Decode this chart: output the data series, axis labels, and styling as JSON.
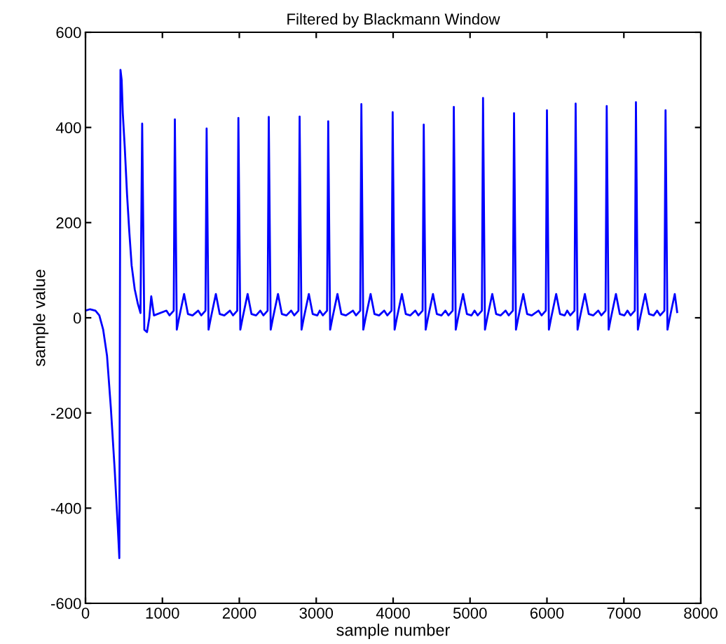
{
  "chart_data": {
    "type": "line",
    "title": "Filtered by Blackmann Window",
    "xlabel": "sample number",
    "ylabel": "sample value",
    "xlim": [
      0,
      8000
    ],
    "xticks": [
      0,
      1000,
      2000,
      3000,
      4000,
      5000,
      6000,
      7000,
      8000
    ],
    "ylim": [
      -600,
      600
    ],
    "yticks": [
      -600,
      -400,
      -200,
      0,
      200,
      400,
      600
    ],
    "grid": false,
    "legend": false,
    "marker": "none",
    "line_style": "solid",
    "series": [
      {
        "color": "#0000ff",
        "x": [
          0,
          60,
          130,
          180,
          230,
          280,
          330,
          380,
          420,
          440,
          455,
          470,
          485,
          510,
          540,
          570,
          600,
          640,
          680,
          715,
          737,
          765,
          800,
          830,
          855,
          890,
          1052,
          1092,
          1147,
          1162,
          1187,
          1217,
          1282,
          1332,
          1392,
          1465,
          1505,
          1560,
          1575,
          1600,
          1630,
          1695,
          1745,
          1805,
          1878,
          1918,
          1973,
          1988,
          2013,
          2043,
          2108,
          2158,
          2218,
          2273,
          2313,
          2368,
          2383,
          2408,
          2438,
          2503,
          2553,
          2613,
          2674,
          2714,
          2769,
          2784,
          2809,
          2839,
          2904,
          2954,
          3014,
          3046,
          3086,
          3141,
          3156,
          3181,
          3211,
          3276,
          3326,
          3386,
          3477,
          3517,
          3572,
          3587,
          3612,
          3642,
          3707,
          3757,
          3817,
          3884,
          3924,
          3979,
          3994,
          4019,
          4049,
          4114,
          4164,
          4224,
          4288,
          4328,
          4383,
          4398,
          4423,
          4453,
          4518,
          4568,
          4628,
          4679,
          4719,
          4774,
          4789,
          4814,
          4844,
          4909,
          4959,
          5019,
          5059,
          5099,
          5154,
          5169,
          5194,
          5224,
          5289,
          5339,
          5399,
          5462,
          5502,
          5557,
          5572,
          5597,
          5627,
          5692,
          5742,
          5802,
          5890,
          5930,
          5985,
          6000,
          6025,
          6055,
          6120,
          6170,
          6230,
          6263,
          6303,
          6358,
          6373,
          6398,
          6428,
          6493,
          6543,
          6603,
          6667,
          6707,
          6762,
          6777,
          6802,
          6832,
          6897,
          6947,
          7007,
          7047,
          7087,
          7142,
          7157,
          7182,
          7212,
          7277,
          7327,
          7387,
          7432,
          7472,
          7527,
          7542,
          7567,
          7597,
          7662,
          7693
        ],
        "values": [
          15,
          18,
          15,
          5,
          -25,
          -80,
          -190,
          -320,
          -440,
          -505,
          521,
          500,
          430,
          360,
          260,
          180,
          110,
          60,
          30,
          10,
          408,
          -25,
          -30,
          0,
          45,
          5,
          15,
          5,
          15,
          417,
          -25,
          0,
          50,
          8,
          5,
          15,
          5,
          15,
          398,
          -25,
          0,
          50,
          8,
          5,
          15,
          5,
          15,
          420,
          -25,
          0,
          50,
          8,
          5,
          15,
          5,
          15,
          422,
          -25,
          0,
          50,
          8,
          5,
          15,
          5,
          15,
          423,
          -25,
          0,
          50,
          8,
          5,
          15,
          5,
          15,
          413,
          -25,
          0,
          50,
          8,
          5,
          15,
          5,
          15,
          449,
          -25,
          0,
          50,
          8,
          5,
          15,
          5,
          15,
          432,
          -25,
          0,
          50,
          8,
          5,
          15,
          5,
          15,
          406,
          -25,
          0,
          50,
          8,
          5,
          15,
          5,
          15,
          443,
          -25,
          0,
          50,
          8,
          5,
          15,
          5,
          15,
          462,
          -25,
          0,
          50,
          8,
          5,
          15,
          5,
          15,
          430,
          -25,
          0,
          50,
          8,
          5,
          15,
          5,
          15,
          436,
          -25,
          0,
          50,
          8,
          5,
          15,
          5,
          15,
          450,
          -25,
          0,
          50,
          8,
          5,
          15,
          5,
          15,
          445,
          -25,
          0,
          50,
          8,
          5,
          15,
          5,
          15,
          453,
          -25,
          0,
          50,
          8,
          5,
          15,
          5,
          15,
          436,
          -25,
          0,
          50,
          12
        ]
      }
    ]
  }
}
